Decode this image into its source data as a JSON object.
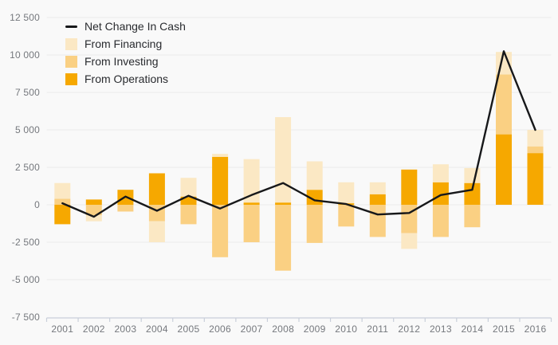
{
  "chart_data": {
    "type": "bar",
    "subtype": "stacked-bars-with-net-line",
    "title": "",
    "categories": [
      "2001",
      "2002",
      "2003",
      "2004",
      "2005",
      "2006",
      "2007",
      "2008",
      "2009",
      "2010",
      "2011",
      "2012",
      "2013",
      "2014",
      "2015",
      "2016"
    ],
    "series": [
      {
        "id": "operations",
        "name": "From Operations",
        "color": "#F6A800",
        "values": [
          -1300,
          350,
          1000,
          2100,
          550,
          3200,
          150,
          150,
          1000,
          100,
          700,
          2350,
          1500,
          1450,
          4700,
          3450
        ]
      },
      {
        "id": "investing",
        "name": "From Investing",
        "color": "#FAD083",
        "values": [
          400,
          -700,
          -450,
          -1100,
          -1300,
          -3500,
          -2500,
          -4400,
          -2550,
          -1450,
          -2150,
          -1900,
          -2150,
          -1500,
          4000,
          450
        ]
      },
      {
        "id": "financing",
        "name": "From Financing",
        "color": "#FBE8C4",
        "values": [
          1050,
          -400,
          0,
          -1400,
          1250,
          200,
          2900,
          5700,
          1900,
          1400,
          800,
          -1050,
          1200,
          1000,
          1500,
          1100
        ]
      }
    ],
    "line_series": {
      "id": "net",
      "name": "Net Change In Cash",
      "color": "#17181a",
      "values": [
        100,
        -800,
        550,
        -400,
        600,
        -250,
        650,
        1450,
        300,
        50,
        -650,
        -550,
        650,
        1000,
        10250,
        5000
      ]
    },
    "legend": [
      {
        "label": "Net Change In Cash",
        "swatch": "line"
      },
      {
        "label": "From Financing",
        "swatch": "financing"
      },
      {
        "label": "From Investing",
        "swatch": "investing"
      },
      {
        "label": "From Operations",
        "swatch": "operations"
      }
    ],
    "y_axis": {
      "tick_labels": [
        "12 500",
        "10 000",
        "7 500",
        "5 000",
        "2 500",
        "0",
        "-2 500",
        "-5 000",
        "-7 500"
      ],
      "tick_values": [
        12500,
        10000,
        7500,
        5000,
        2500,
        0,
        -2500,
        -5000,
        -7500
      ],
      "ylim": [
        -7500,
        12500
      ],
      "grid": true
    },
    "x_axis": {
      "tick_labels_are_categories": true
    },
    "colors": {
      "background": "#f9f9f9",
      "gridline": "#ececec",
      "axis_line": "#c9cfda",
      "tick_label": "#75787d",
      "legend_text": "#292b2f"
    },
    "legend_position": "top-left"
  }
}
